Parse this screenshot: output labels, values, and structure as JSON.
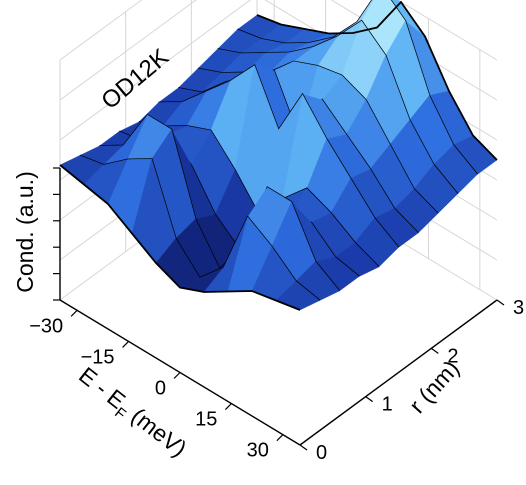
{
  "chart_data": {
    "type": "surface3d",
    "annotation": "OD12K",
    "xlabel": "E - E",
    "xlabel_subscript": "F",
    "xlabel_unit": "(meV)",
    "ylabel": "r (nm)",
    "zlabel": "Cond. (a.u.)",
    "xlim": [
      -35,
      35
    ],
    "ylim": [
      0,
      3
    ],
    "xticks": [
      -30,
      -15,
      0,
      15,
      30
    ],
    "xtick_labels": [
      "−30",
      "−15",
      "0",
      "15",
      "30"
    ],
    "yticks": [
      0,
      1,
      2,
      3
    ],
    "ytick_labels": [
      "0",
      "1",
      "2",
      "3"
    ],
    "z_tick_count": 6,
    "grid": true,
    "colormap": [
      "#0d1a66",
      "#1a3aa8",
      "#2f6fe0",
      "#5fb4f5",
      "#b4ecfc"
    ],
    "line_color": "#000000",
    "energy_mev": [
      -35,
      -28,
      -21,
      -14,
      -7,
      0,
      7,
      14,
      21,
      28,
      35
    ],
    "position_nm": [
      0.0,
      0.3,
      0.6,
      0.9,
      1.2,
      1.5,
      1.8,
      2.1,
      2.4,
      2.7,
      3.0
    ],
    "conductance": [
      [
        1.35,
        1.3,
        1.25,
        1.1,
        0.95,
        0.85,
        0.95,
        1.1,
        1.25,
        1.3,
        1.35
      ],
      [
        1.3,
        1.35,
        1.55,
        1.7,
        1.05,
        0.8,
        1.05,
        1.7,
        1.55,
        1.35,
        1.3
      ],
      [
        1.25,
        1.4,
        1.85,
        1.85,
        1.1,
        0.75,
        1.1,
        1.85,
        1.85,
        1.4,
        1.25
      ],
      [
        1.25,
        1.3,
        1.5,
        1.35,
        1.0,
        0.8,
        1.0,
        1.35,
        1.5,
        1.3,
        1.25
      ],
      [
        1.2,
        1.3,
        1.45,
        1.55,
        1.3,
        1.0,
        1.3,
        1.55,
        1.45,
        1.3,
        1.2
      ],
      [
        1.25,
        1.4,
        1.65,
        1.9,
        2.2,
        1.7,
        2.2,
        1.9,
        1.65,
        1.4,
        1.25
      ],
      [
        1.25,
        1.35,
        1.6,
        1.8,
        2.0,
        1.5,
        2.0,
        1.8,
        1.6,
        1.35,
        1.25
      ],
      [
        1.3,
        1.4,
        1.55,
        1.7,
        1.95,
        2.05,
        2.1,
        2.0,
        1.7,
        1.4,
        1.3
      ],
      [
        1.35,
        1.45,
        1.6,
        1.75,
        1.95,
        2.2,
        2.5,
        2.3,
        1.8,
        1.5,
        1.35
      ],
      [
        1.4,
        1.45,
        1.55,
        1.7,
        1.9,
        2.2,
        2.7,
        2.5,
        1.9,
        1.55,
        1.4
      ],
      [
        1.4,
        1.45,
        1.55,
        1.65,
        1.8,
        2.0,
        2.4,
        2.2,
        1.8,
        1.5,
        1.4
      ]
    ]
  }
}
